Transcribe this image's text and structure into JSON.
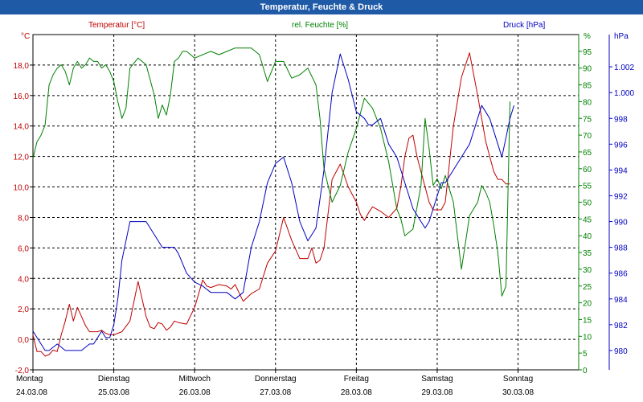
{
  "title": "Temperatur, Feuchte & Druck",
  "colors": {
    "temperature": "#c00000",
    "humidity": "#008000",
    "pressure": "#0000c0",
    "grid": "#000000",
    "axis": "#000000"
  },
  "chart_data": {
    "type": "line",
    "title": "Temperatur, Feuchte & Druck",
    "xlabel": "",
    "days": [
      {
        "name": "Montag",
        "date": "24.03.08"
      },
      {
        "name": "Dienstag",
        "date": "25.03.08"
      },
      {
        "name": "Mittwoch",
        "date": "26.03.08"
      },
      {
        "name": "Donnerstag",
        "date": "27.03.08"
      },
      {
        "name": "Freitag",
        "date": "28.03.08"
      },
      {
        "name": "Samstag",
        "date": "29.03.08"
      },
      {
        "name": "Sonntag",
        "date": "30.03.08"
      }
    ],
    "xlim": [
      0,
      6.75
    ],
    "axes": {
      "temperature": {
        "label": "Temperatur [°C]",
        "unit": "°C",
        "ylim": [
          -2,
          20
        ],
        "ticks": [
          "-2,0",
          "0,0",
          "2,0",
          "4,0",
          "6,0",
          "8,0",
          "10,0",
          "12,0",
          "14,0",
          "16,0",
          "18,0"
        ]
      },
      "humidity": {
        "label": "rel. Feuchte [%]",
        "unit": "%",
        "ylim": [
          0,
          100
        ],
        "ticks": [
          "0",
          "5",
          "10",
          "15",
          "20",
          "25",
          "30",
          "35",
          "40",
          "45",
          "50",
          "55",
          "60",
          "65",
          "70",
          "75",
          "80",
          "85",
          "90",
          "95"
        ]
      },
      "pressure": {
        "label": "Druck [hPa]",
        "unit": "hPa",
        "ylim": [
          978.5,
          1004.5
        ],
        "ticks": [
          "980",
          "982",
          "984",
          "986",
          "988",
          "990",
          "992",
          "994",
          "996",
          "998",
          "1.000",
          "1.002"
        ]
      }
    },
    "series": [
      {
        "name": "Temperatur [°C]",
        "axis": "temperature",
        "x": [
          0,
          0.05,
          0.1,
          0.15,
          0.2,
          0.25,
          0.3,
          0.35,
          0.4,
          0.45,
          0.5,
          0.55,
          0.6,
          0.65,
          0.7,
          0.75,
          0.8,
          0.85,
          0.9,
          0.95,
          1.0,
          1.1,
          1.2,
          1.3,
          1.4,
          1.45,
          1.5,
          1.55,
          1.6,
          1.65,
          1.7,
          1.75,
          1.8,
          1.9,
          2.0,
          2.1,
          2.15,
          2.2,
          2.3,
          2.4,
          2.45,
          2.5,
          2.6,
          2.7,
          2.8,
          2.9,
          3.0,
          3.1,
          3.2,
          3.3,
          3.4,
          3.45,
          3.5,
          3.55,
          3.6,
          3.7,
          3.8,
          3.9,
          4.0,
          4.05,
          4.1,
          4.15,
          4.2,
          4.3,
          4.4,
          4.5,
          4.55,
          4.6,
          4.65,
          4.7,
          4.75,
          4.8,
          4.85,
          4.9,
          4.95,
          5.0,
          5.05,
          5.1,
          5.2,
          5.3,
          5.4,
          5.5,
          5.55,
          5.6,
          5.65,
          5.7,
          5.75,
          5.8,
          5.85,
          5.9
        ],
        "y": [
          0.3,
          -0.8,
          -0.8,
          -1.1,
          -1.0,
          -0.7,
          -0.8,
          0.3,
          1.2,
          2.3,
          1.2,
          2.1,
          1.5,
          0.9,
          0.5,
          0.5,
          0.5,
          0.6,
          0.4,
          0.3,
          0.3,
          0.5,
          1.2,
          3.8,
          1.5,
          0.8,
          0.7,
          1.1,
          1.0,
          0.6,
          0.8,
          1.2,
          1.1,
          1.0,
          2.1,
          3.9,
          3.5,
          3.4,
          3.6,
          3.5,
          3.3,
          3.6,
          2.5,
          3.0,
          3.3,
          5.0,
          5.8,
          8.0,
          6.5,
          5.3,
          5.3,
          6.0,
          5.0,
          5.2,
          6.0,
          10.5,
          11.5,
          10.0,
          9.0,
          8.2,
          7.8,
          8.3,
          8.7,
          8.4,
          8.0,
          8.6,
          10.0,
          12.0,
          13.2,
          13.4,
          12.0,
          11.0,
          10.0,
          9.0,
          8.5,
          8.5,
          8.5,
          9.0,
          14.0,
          17.2,
          18.8,
          16.0,
          14.5,
          13.0,
          12.0,
          11.0,
          10.5,
          10.5,
          10.2,
          10.2
        ]
      },
      {
        "name": "rel. Feuchte [%]",
        "axis": "humidity",
        "x": [
          0,
          0.05,
          0.1,
          0.15,
          0.2,
          0.25,
          0.3,
          0.35,
          0.4,
          0.45,
          0.5,
          0.55,
          0.6,
          0.65,
          0.7,
          0.75,
          0.8,
          0.85,
          0.9,
          0.95,
          1.0,
          1.05,
          1.1,
          1.15,
          1.2,
          1.3,
          1.4,
          1.5,
          1.55,
          1.6,
          1.65,
          1.7,
          1.75,
          1.8,
          1.85,
          1.9,
          2.0,
          2.1,
          2.2,
          2.3,
          2.4,
          2.5,
          2.6,
          2.7,
          2.8,
          2.9,
          3.0,
          3.1,
          3.2,
          3.3,
          3.4,
          3.5,
          3.55,
          3.6,
          3.7,
          3.8,
          3.9,
          4.0,
          4.1,
          4.2,
          4.3,
          4.4,
          4.5,
          4.55,
          4.6,
          4.7,
          4.8,
          4.85,
          4.9,
          4.95,
          5.0,
          5.05,
          5.1,
          5.2,
          5.3,
          5.4,
          5.5,
          5.55,
          5.6,
          5.65,
          5.7,
          5.75,
          5.8,
          5.85,
          5.9
        ],
        "y": [
          63,
          68,
          70,
          73,
          85,
          88,
          90,
          91,
          89,
          85,
          90,
          92,
          90,
          91,
          93,
          92,
          92,
          90,
          91,
          89,
          86,
          80,
          75,
          78,
          90,
          93,
          91,
          82,
          75,
          79,
          76,
          82,
          92,
          93,
          95,
          95,
          93,
          94,
          95,
          94,
          95,
          96,
          96,
          96,
          94,
          86,
          92,
          92,
          87,
          88,
          90,
          85,
          75,
          60,
          50,
          55,
          65,
          72,
          81,
          78,
          72,
          62,
          48,
          45,
          40,
          42,
          55,
          75,
          66,
          55,
          57,
          54,
          58,
          50,
          30,
          46,
          50,
          55,
          53,
          50,
          43,
          35,
          22,
          25,
          80
        ]
      },
      {
        "name": "Druck [hPa]",
        "axis": "pressure",
        "x": [
          0,
          0.1,
          0.15,
          0.2,
          0.3,
          0.4,
          0.5,
          0.6,
          0.7,
          0.75,
          0.8,
          0.85,
          0.9,
          0.95,
          1.0,
          1.05,
          1.1,
          1.2,
          1.3,
          1.4,
          1.5,
          1.55,
          1.6,
          1.65,
          1.7,
          1.75,
          1.8,
          1.9,
          2.0,
          2.1,
          2.2,
          2.3,
          2.4,
          2.5,
          2.6,
          2.7,
          2.8,
          2.9,
          3.0,
          3.1,
          3.2,
          3.3,
          3.4,
          3.5,
          3.6,
          3.7,
          3.8,
          3.9,
          4.0,
          4.1,
          4.15,
          4.2,
          4.3,
          4.4,
          4.5,
          4.6,
          4.65,
          4.7,
          4.8,
          4.85,
          4.9,
          5.0,
          5.05,
          5.1,
          5.2,
          5.3,
          5.4,
          5.5,
          5.55,
          5.6,
          5.65,
          5.7,
          5.75,
          5.8,
          5.85,
          5.9,
          5.95
        ],
        "y": [
          981.5,
          980.5,
          980,
          980,
          980.5,
          980,
          980,
          980,
          980.5,
          980.5,
          981,
          981.5,
          981,
          981,
          982,
          984,
          987,
          990,
          990,
          990,
          989,
          988.5,
          988,
          988,
          988,
          988,
          987.5,
          986,
          985.3,
          985,
          984.5,
          984.5,
          984.5,
          984,
          984.5,
          988,
          990,
          993,
          994.5,
          995,
          993,
          990,
          988.5,
          989.5,
          994,
          1000,
          1003,
          1001,
          998.5,
          998,
          997.5,
          997.5,
          998,
          996,
          995,
          993,
          992,
          991,
          990,
          989.5,
          990,
          992,
          993,
          993,
          994,
          995,
          996,
          998,
          999,
          998.5,
          998,
          997,
          996,
          995,
          996.5,
          998,
          999
        ]
      }
    ]
  }
}
